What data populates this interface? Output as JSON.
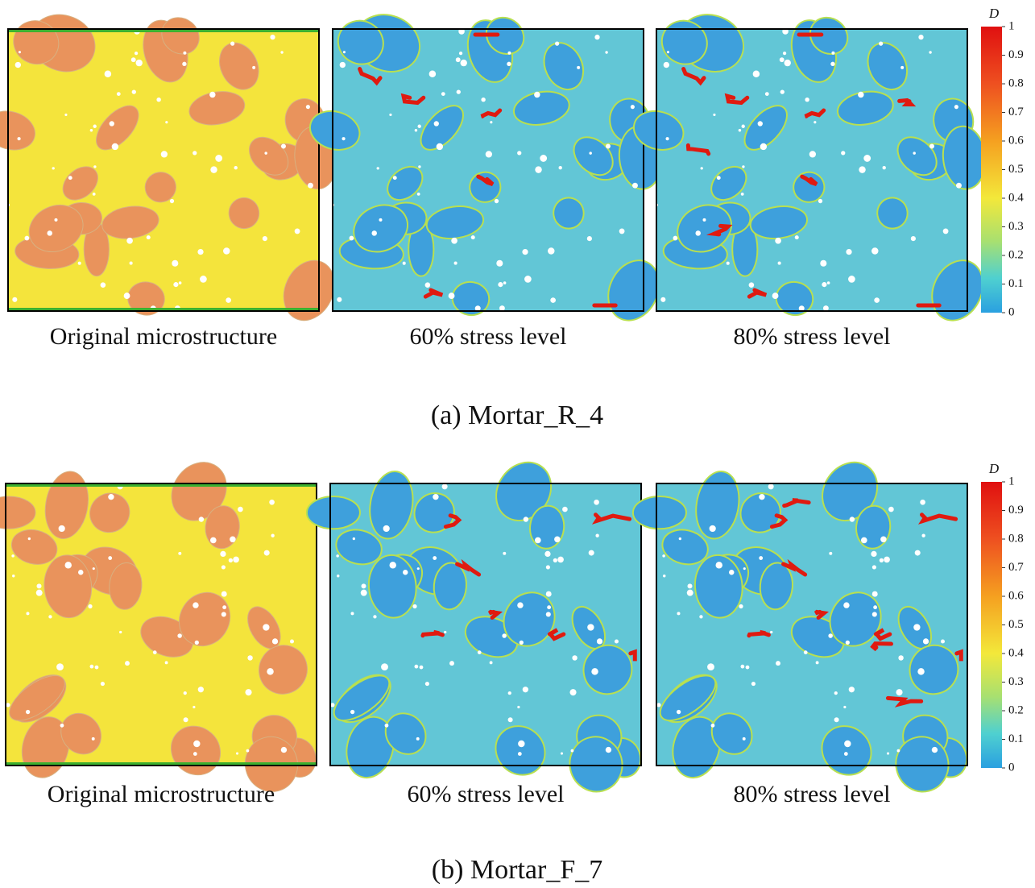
{
  "figures": [
    {
      "panels": [
        "Original microstructure",
        "60% stress level",
        "80% stress level"
      ],
      "caption": "(a) Mortar_R_4",
      "colorbar": {
        "label": "D",
        "ticks": [
          1,
          0.9,
          0.8,
          0.7,
          0.6,
          0.5,
          0.4,
          0.3,
          0.2,
          0.1,
          0
        ]
      }
    },
    {
      "panels": [
        "Original microstructure",
        "60% stress level",
        "80% stress level"
      ],
      "caption": "(b) Mortar_F_7",
      "colorbar": {
        "label": "D",
        "ticks": [
          1,
          0.9,
          0.8,
          0.7,
          0.6,
          0.5,
          0.4,
          0.3,
          0.2,
          0.1,
          0
        ]
      }
    }
  ]
}
